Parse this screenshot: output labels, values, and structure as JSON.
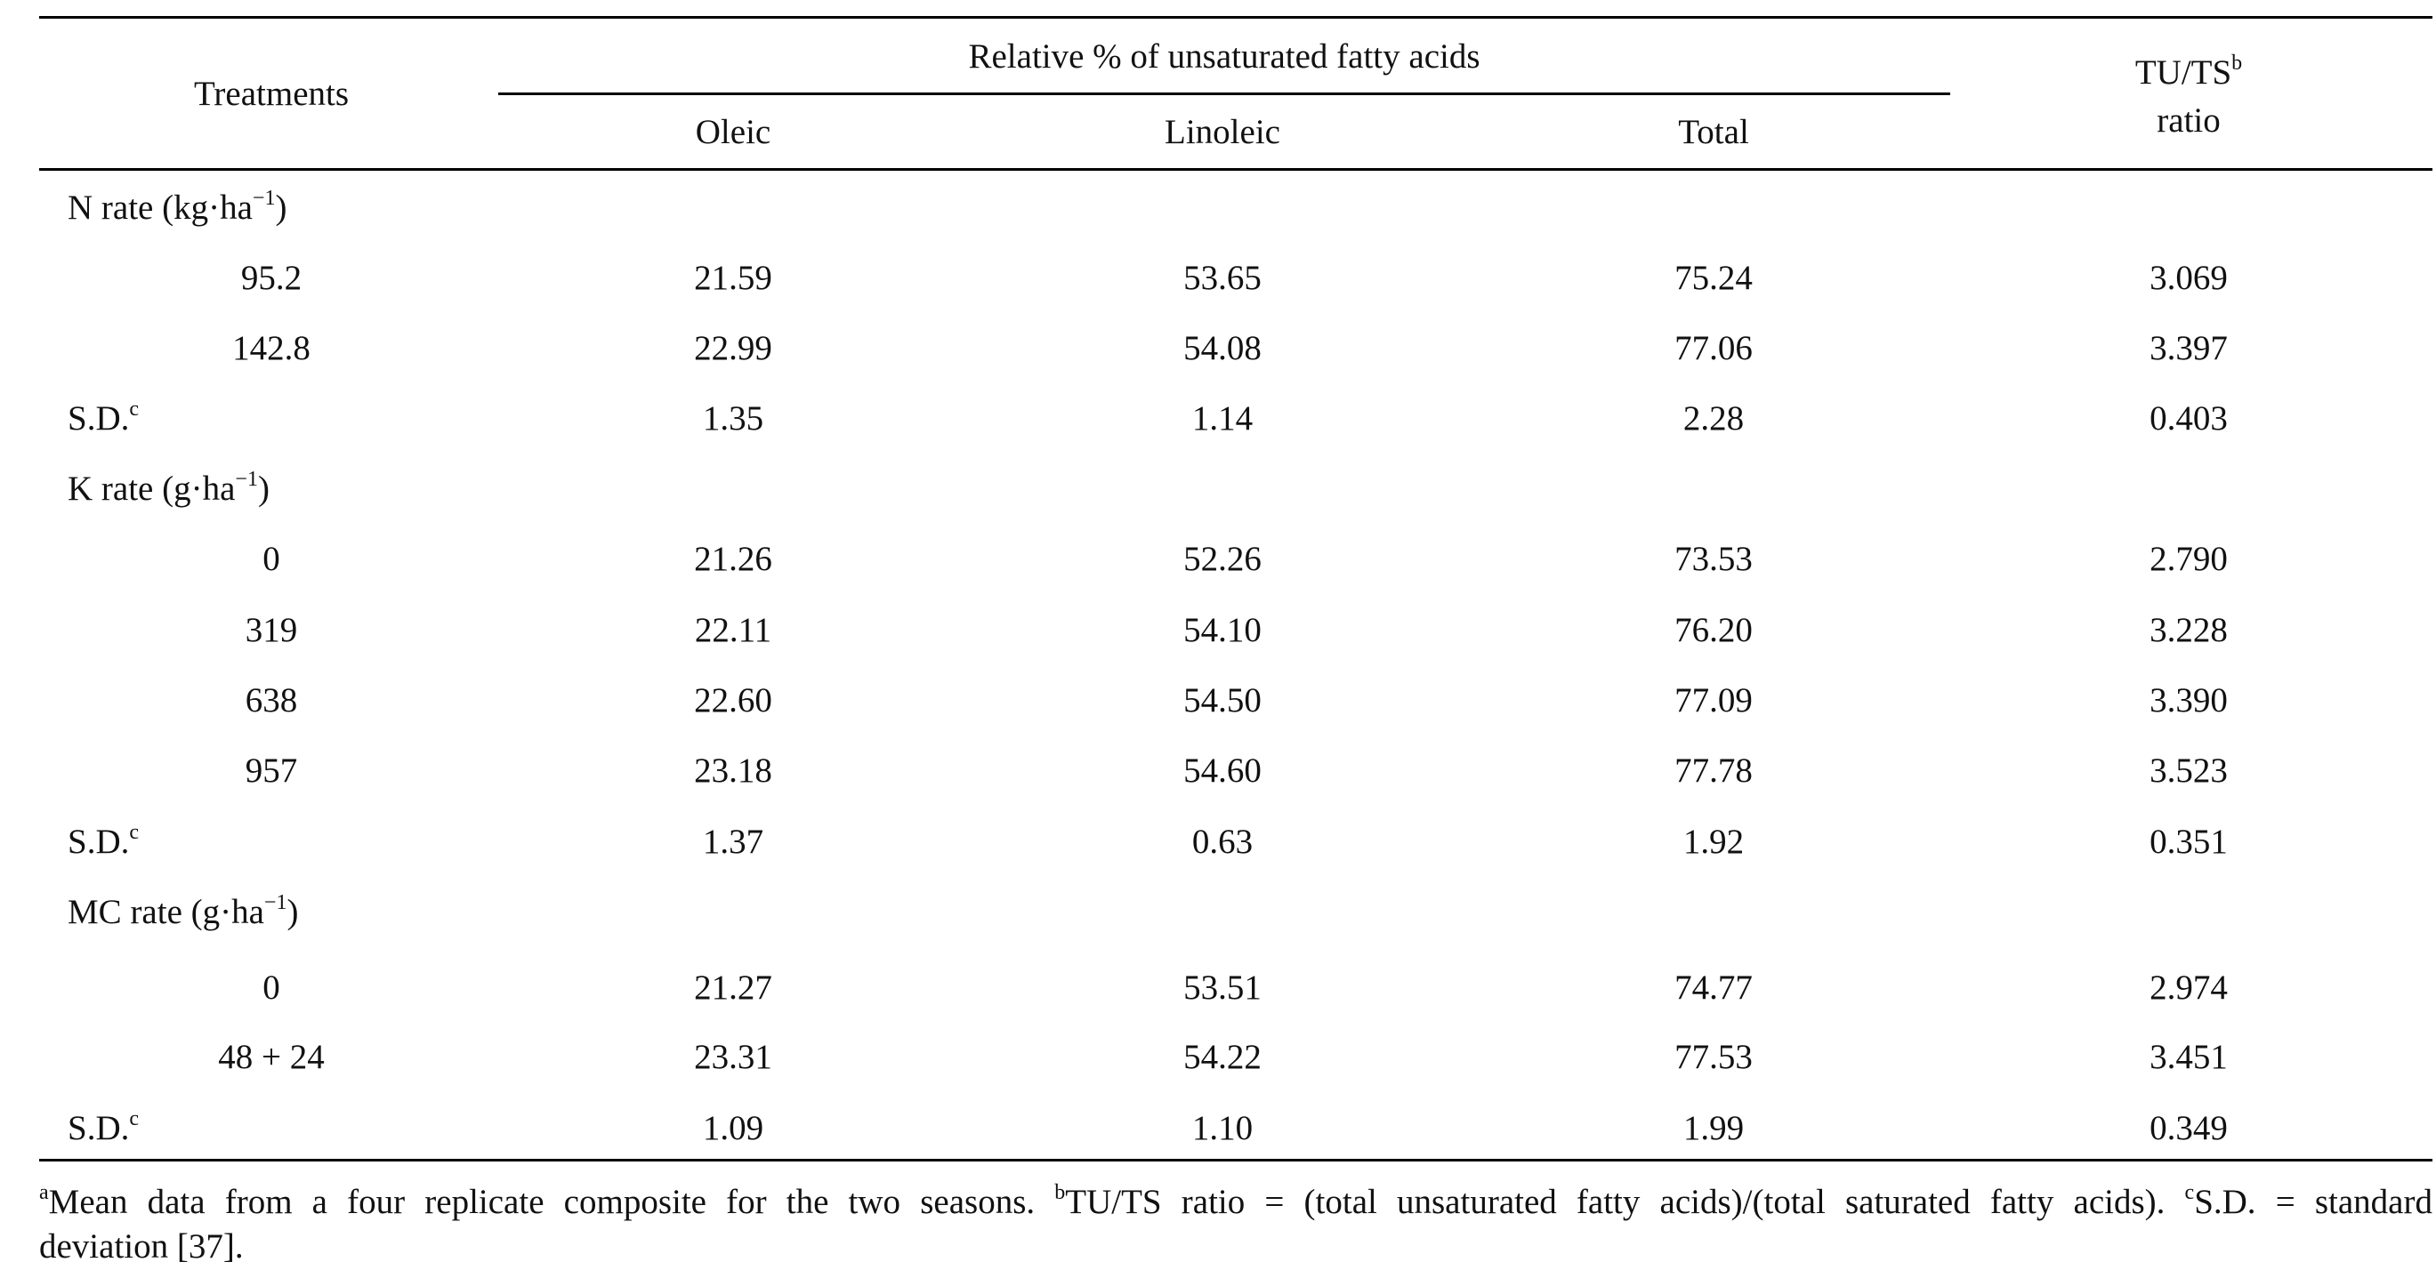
{
  "header": {
    "treatments": "Treatments",
    "group": "Relative % of unsaturated fatty acids",
    "oleic": "Oleic",
    "linoleic": "Linoleic",
    "total": "Total",
    "ratio_line1_main": "TU/TS",
    "ratio_line1_sup": "b",
    "ratio_line2": "ratio"
  },
  "sections": [
    {
      "label_main": "N rate (kg·ha",
      "label_sup": "−1",
      "label_close": ")",
      "rows": [
        {
          "treatment": "95.2",
          "oleic": "21.59",
          "linoleic": "53.65",
          "total": "75.24",
          "ratio": "3.069"
        },
        {
          "treatment": "142.8",
          "oleic": "22.99",
          "linoleic": "54.08",
          "total": "77.06",
          "ratio": "3.397"
        }
      ],
      "sd": {
        "label": "S.D.",
        "sup": "c",
        "oleic": "1.35",
        "linoleic": "1.14",
        "total": "2.28",
        "ratio": "0.403"
      }
    },
    {
      "label_main": "K rate (g·ha",
      "label_sup": "−1",
      "label_close": ")",
      "rows": [
        {
          "treatment": "0",
          "oleic": "21.26",
          "linoleic": "52.26",
          "total": "73.53",
          "ratio": "2.790"
        },
        {
          "treatment": "319",
          "oleic": "22.11",
          "linoleic": "54.10",
          "total": "76.20",
          "ratio": "3.228"
        },
        {
          "treatment": "638",
          "oleic": "22.60",
          "linoleic": "54.50",
          "total": "77.09",
          "ratio": "3.390"
        },
        {
          "treatment": "957",
          "oleic": "23.18",
          "linoleic": "54.60",
          "total": "77.78",
          "ratio": "3.523"
        }
      ],
      "sd": {
        "label": "S.D.",
        "sup": "c",
        "oleic": "1.37",
        "linoleic": "0.63",
        "total": "1.92",
        "ratio": "0.351"
      }
    },
    {
      "label_main": "MC rate (g·ha",
      "label_sup": "−1",
      "label_close": ")",
      "rows": [
        {
          "treatment": "0",
          "oleic": "21.27",
          "linoleic": "53.51",
          "total": "74.77",
          "ratio": "2.974"
        },
        {
          "treatment": "48 + 24",
          "oleic": "23.31",
          "linoleic": "54.22",
          "total": "77.53",
          "ratio": "3.451"
        }
      ],
      "sd": {
        "label": "S.D.",
        "sup": "c",
        "oleic": "1.09",
        "linoleic": "1.10",
        "total": "1.99",
        "ratio": "0.349"
      }
    }
  ],
  "footnote": {
    "a_sup": "a",
    "a_text": "Mean data from a four replicate composite for the two seasons. ",
    "b_sup": "b",
    "b_text": "TU/TS ratio = (total unsaturated fatty acids)/(total saturated fatty acids). ",
    "c_sup": "c",
    "c_text": "S.D. = standard",
    "line2": "deviation [37]."
  }
}
